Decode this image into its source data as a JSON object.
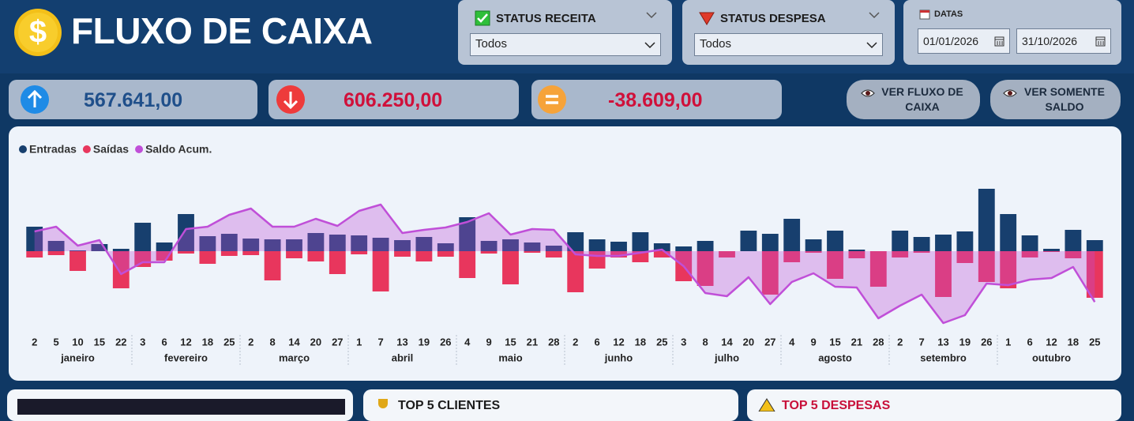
{
  "header": {
    "title": "FLUXO DE CAIXA"
  },
  "filters": [
    {
      "label": "STATUS RECEITA",
      "value": "Todos"
    },
    {
      "label": "STATUS DESPESA",
      "value": "Todos"
    }
  ],
  "dates": {
    "label": "DATAS",
    "start": "01/01/2026",
    "end": "31/10/2026"
  },
  "kpis": [
    {
      "value": "567.641,00"
    },
    {
      "value": "606.250,00"
    },
    {
      "value": "-38.609,00"
    }
  ],
  "buttons": [
    "VER FLUXO DE CAIXA",
    "VER SOMENTE SALDO"
  ],
  "chart_data": {
    "type": "combo",
    "legend": "top-left",
    "category_groups": [
      {
        "name": "janeiro",
        "categories": [
          "2",
          "5",
          "10",
          "15",
          "22"
        ]
      },
      {
        "name": "fevereiro",
        "categories": [
          "3",
          "6",
          "12",
          "18",
          "25"
        ]
      },
      {
        "name": "março",
        "categories": [
          "2",
          "8",
          "14",
          "20",
          "27"
        ]
      },
      {
        "name": "abril",
        "categories": [
          "1",
          "7",
          "13",
          "19",
          "26"
        ]
      },
      {
        "name": "maio",
        "categories": [
          "4",
          "9",
          "15",
          "21",
          "28"
        ]
      },
      {
        "name": "junho",
        "categories": [
          "2",
          "6",
          "12",
          "18",
          "25"
        ]
      },
      {
        "name": "julho",
        "categories": [
          "3",
          "8",
          "14",
          "20",
          "27"
        ]
      },
      {
        "name": "agosto",
        "categories": [
          "4",
          "9",
          "15",
          "21",
          "28"
        ]
      },
      {
        "name": "setembro",
        "categories": [
          "2",
          "7",
          "13",
          "19",
          "26"
        ]
      },
      {
        "name": "outubro",
        "categories": [
          "1",
          "6",
          "12",
          "18",
          "25"
        ]
      }
    ],
    "ylim": [
      -60000,
      60000
    ],
    "series": [
      {
        "name": "Entradas",
        "type": "bar",
        "color": "#173f6e",
        "values": [
          18600,
          7800,
          600,
          5400,
          1800,
          21600,
          6600,
          28200,
          11400,
          13200,
          9600,
          9000,
          9000,
          13800,
          12600,
          12000,
          10200,
          8400,
          10800,
          6000,
          25800,
          7800,
          9000,
          6600,
          4200,
          14400,
          9000,
          7200,
          14400,
          6000,
          3600,
          7800,
          0,
          15600,
          13200,
          24600,
          9000,
          15600,
          1200,
          0,
          15600,
          10800,
          12600,
          15000,
          47400,
          28200,
          12000,
          1800,
          16200,
          8400
        ]
      },
      {
        "name": "Saídas",
        "type": "bar",
        "color": "#e8365d",
        "values": [
          -4800,
          -3000,
          -15000,
          0,
          -28200,
          -12000,
          -7200,
          -1800,
          -9600,
          -3600,
          -3000,
          -22200,
          -5400,
          -7800,
          -17400,
          -2400,
          -30600,
          -4200,
          -7800,
          -4200,
          -20400,
          -1800,
          -25200,
          -1200,
          -4800,
          -31200,
          -13200,
          -4800,
          -8400,
          -4800,
          -22800,
          -26400,
          -4800,
          0,
          -33000,
          -8400,
          -1200,
          -21000,
          -5400,
          -27000,
          -4800,
          -1200,
          -34800,
          -9000,
          -23400,
          -28200,
          -4800,
          -600,
          -5400,
          -35400
        ]
      },
      {
        "name": "Saldo Acum.",
        "type": "area",
        "color": "#c04fd8",
        "values": [
          15000,
          18600,
          4200,
          8400,
          -17400,
          -8400,
          -8400,
          16800,
          18600,
          27600,
          32400,
          18600,
          18600,
          24600,
          19200,
          30600,
          35400,
          13800,
          16200,
          18000,
          22200,
          28800,
          12600,
          16800,
          16200,
          -2400,
          -3600,
          -3600,
          -1200,
          1200,
          -11400,
          -31800,
          -34200,
          -19800,
          -40200,
          -23400,
          -16800,
          -27000,
          -27600,
          -51000,
          -41400,
          -33000,
          -54600,
          -48600,
          -24600,
          -25800,
          -21600,
          -20400,
          -12000,
          -38609
        ]
      }
    ]
  },
  "panels": [
    "TOP 5 CLIENTES",
    "TOP 5 DESPESAS"
  ]
}
